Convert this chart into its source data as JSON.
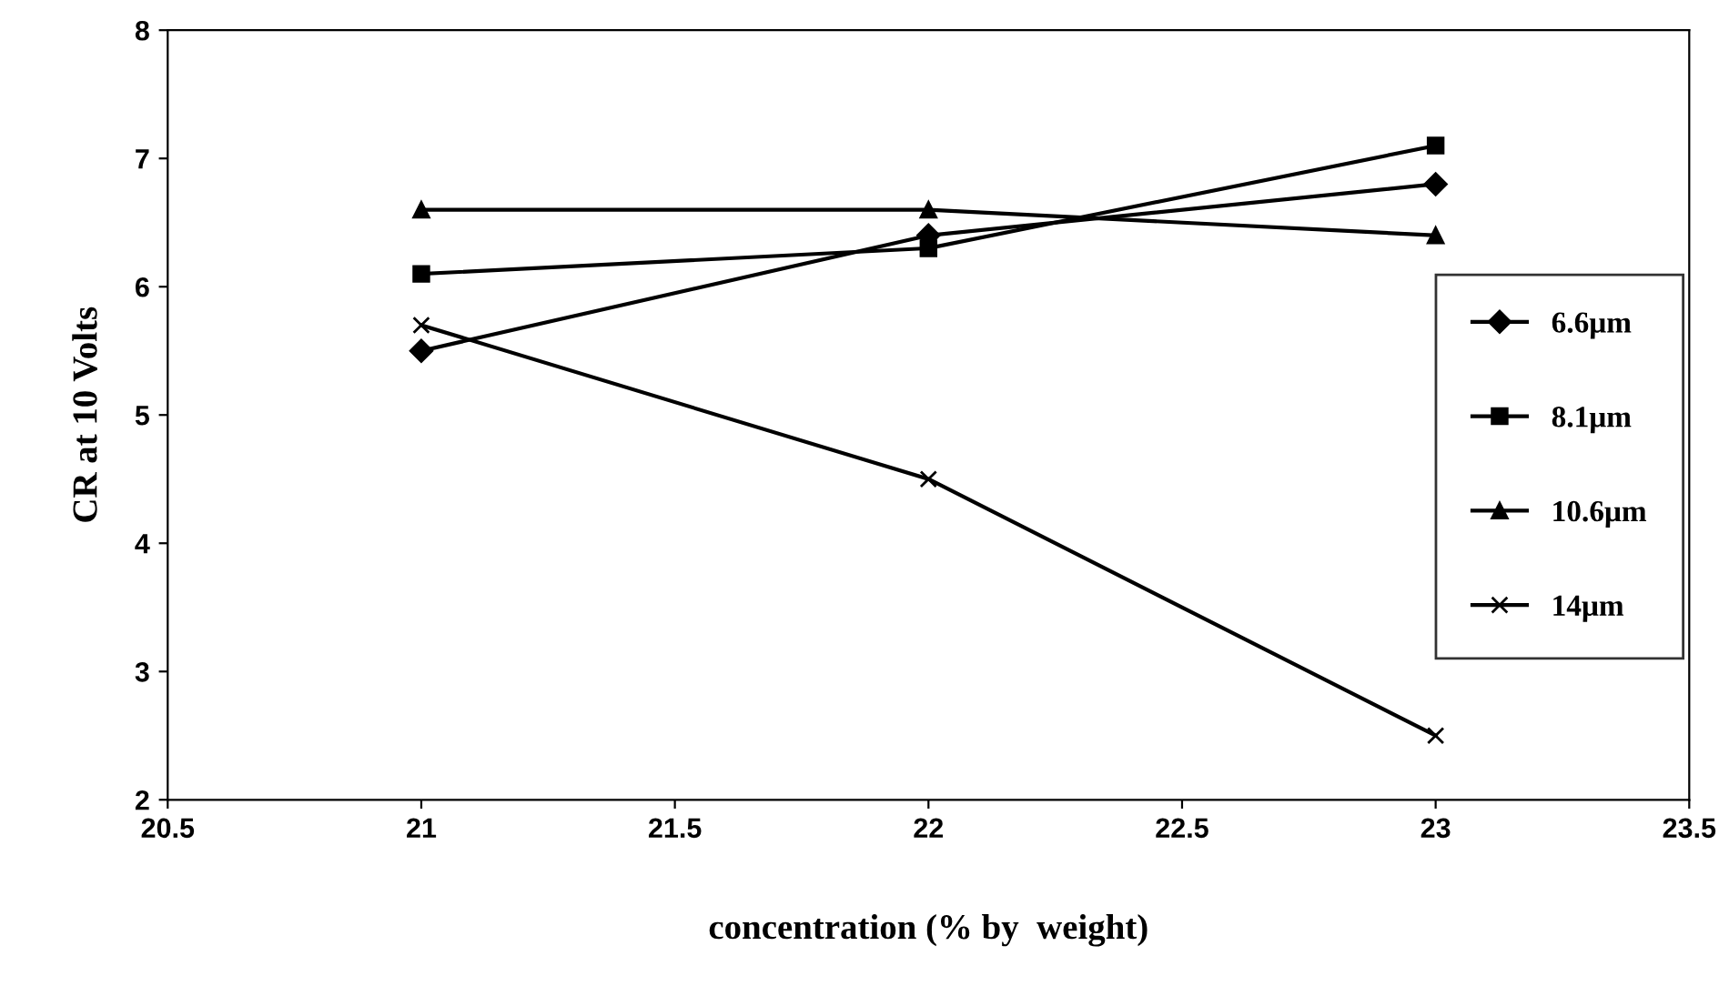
{
  "chart_data": {
    "type": "line",
    "xlabel": "concentration (% by  weight)",
    "ylabel": "CR at 10 Volts",
    "x": [
      21,
      22,
      23
    ],
    "series": [
      {
        "name": "6.6μm",
        "color": "#000000",
        "marker": "diamond",
        "values": [
          5.5,
          6.4,
          6.8
        ]
      },
      {
        "name": "8.1μm",
        "color": "#000000",
        "marker": "square",
        "values": [
          6.1,
          6.3,
          7.1
        ]
      },
      {
        "name": "10.6μm",
        "color": "#000000",
        "marker": "triangle",
        "values": [
          6.6,
          6.6,
          6.4
        ]
      },
      {
        "name": "14μm",
        "color": "#000000",
        "marker": "cross",
        "values": [
          5.7,
          4.5,
          2.5
        ]
      }
    ],
    "xlim": [
      20.5,
      23.5
    ],
    "xticks": [
      20.5,
      21,
      21.5,
      22,
      22.5,
      23,
      23.5
    ],
    "ylim": [
      2,
      8
    ],
    "yticks": [
      2,
      3,
      4,
      5,
      6,
      7,
      8
    ],
    "grid": false,
    "legend": "right",
    "line_style": "solid"
  }
}
